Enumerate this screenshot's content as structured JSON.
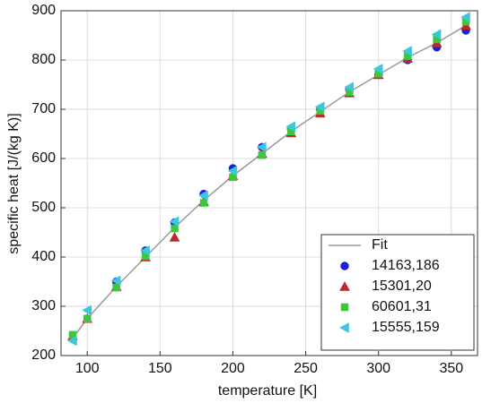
{
  "chart_data": {
    "type": "scatter",
    "x_label": "temperature [K]",
    "y_label": "specific heat [J/(kg K)]",
    "xlim": [
      82,
      368
    ],
    "xticks": [
      100,
      150,
      200,
      250,
      300,
      350
    ],
    "ylim": [
      200,
      900
    ],
    "yticks": [
      200,
      300,
      400,
      500,
      600,
      700,
      800,
      900
    ],
    "grid": true,
    "legend": "lower right",
    "series": [
      {
        "name": "Fit",
        "color": "#999999",
        "marker": "line",
        "x": [
          90,
          100,
          120,
          140,
          160,
          180,
          200,
          220,
          240,
          260,
          280,
          300,
          320,
          340,
          360
        ],
        "values": [
          235,
          275,
          340,
          400,
          460,
          515,
          565,
          610,
          655,
          695,
          735,
          770,
          805,
          835,
          870
        ]
      },
      {
        "name": "14163,186",
        "color": "#1f1fd6",
        "marker": "o",
        "x": [
          120,
          140,
          160,
          180,
          200,
          220,
          240,
          260,
          280,
          300,
          320,
          340,
          360
        ],
        "values": [
          350,
          413,
          470,
          528,
          580,
          623,
          660,
          700,
          740,
          770,
          800,
          826,
          860
        ]
      },
      {
        "name": "15301,20",
        "color": "#c0272d",
        "marker": "^",
        "x": [
          90,
          100,
          120,
          140,
          160,
          180,
          200,
          220,
          240,
          260,
          280,
          300,
          320,
          340,
          360
        ],
        "values": [
          240,
          275,
          340,
          400,
          440,
          512,
          565,
          610,
          652,
          692,
          733,
          770,
          803,
          835,
          870
        ]
      },
      {
        "name": "60601,31",
        "color": "#3cc83c",
        "marker": "s",
        "x": [
          90,
          100,
          120,
          140,
          160,
          180,
          200,
          220,
          240,
          260,
          280,
          300,
          320,
          340,
          360
        ],
        "values": [
          242,
          275,
          338,
          402,
          458,
          510,
          562,
          607,
          655,
          697,
          735,
          772,
          808,
          842,
          878
        ]
      },
      {
        "name": "15555,159",
        "color": "#3cc8d8",
        "marker": "<",
        "x": [
          90,
          100,
          120,
          140,
          160,
          180,
          200,
          220,
          240,
          260,
          280,
          300,
          320,
          340,
          360
        ],
        "values": [
          230,
          292,
          352,
          413,
          472,
          525,
          575,
          623,
          665,
          705,
          745,
          782,
          818,
          852,
          887
        ]
      }
    ]
  }
}
